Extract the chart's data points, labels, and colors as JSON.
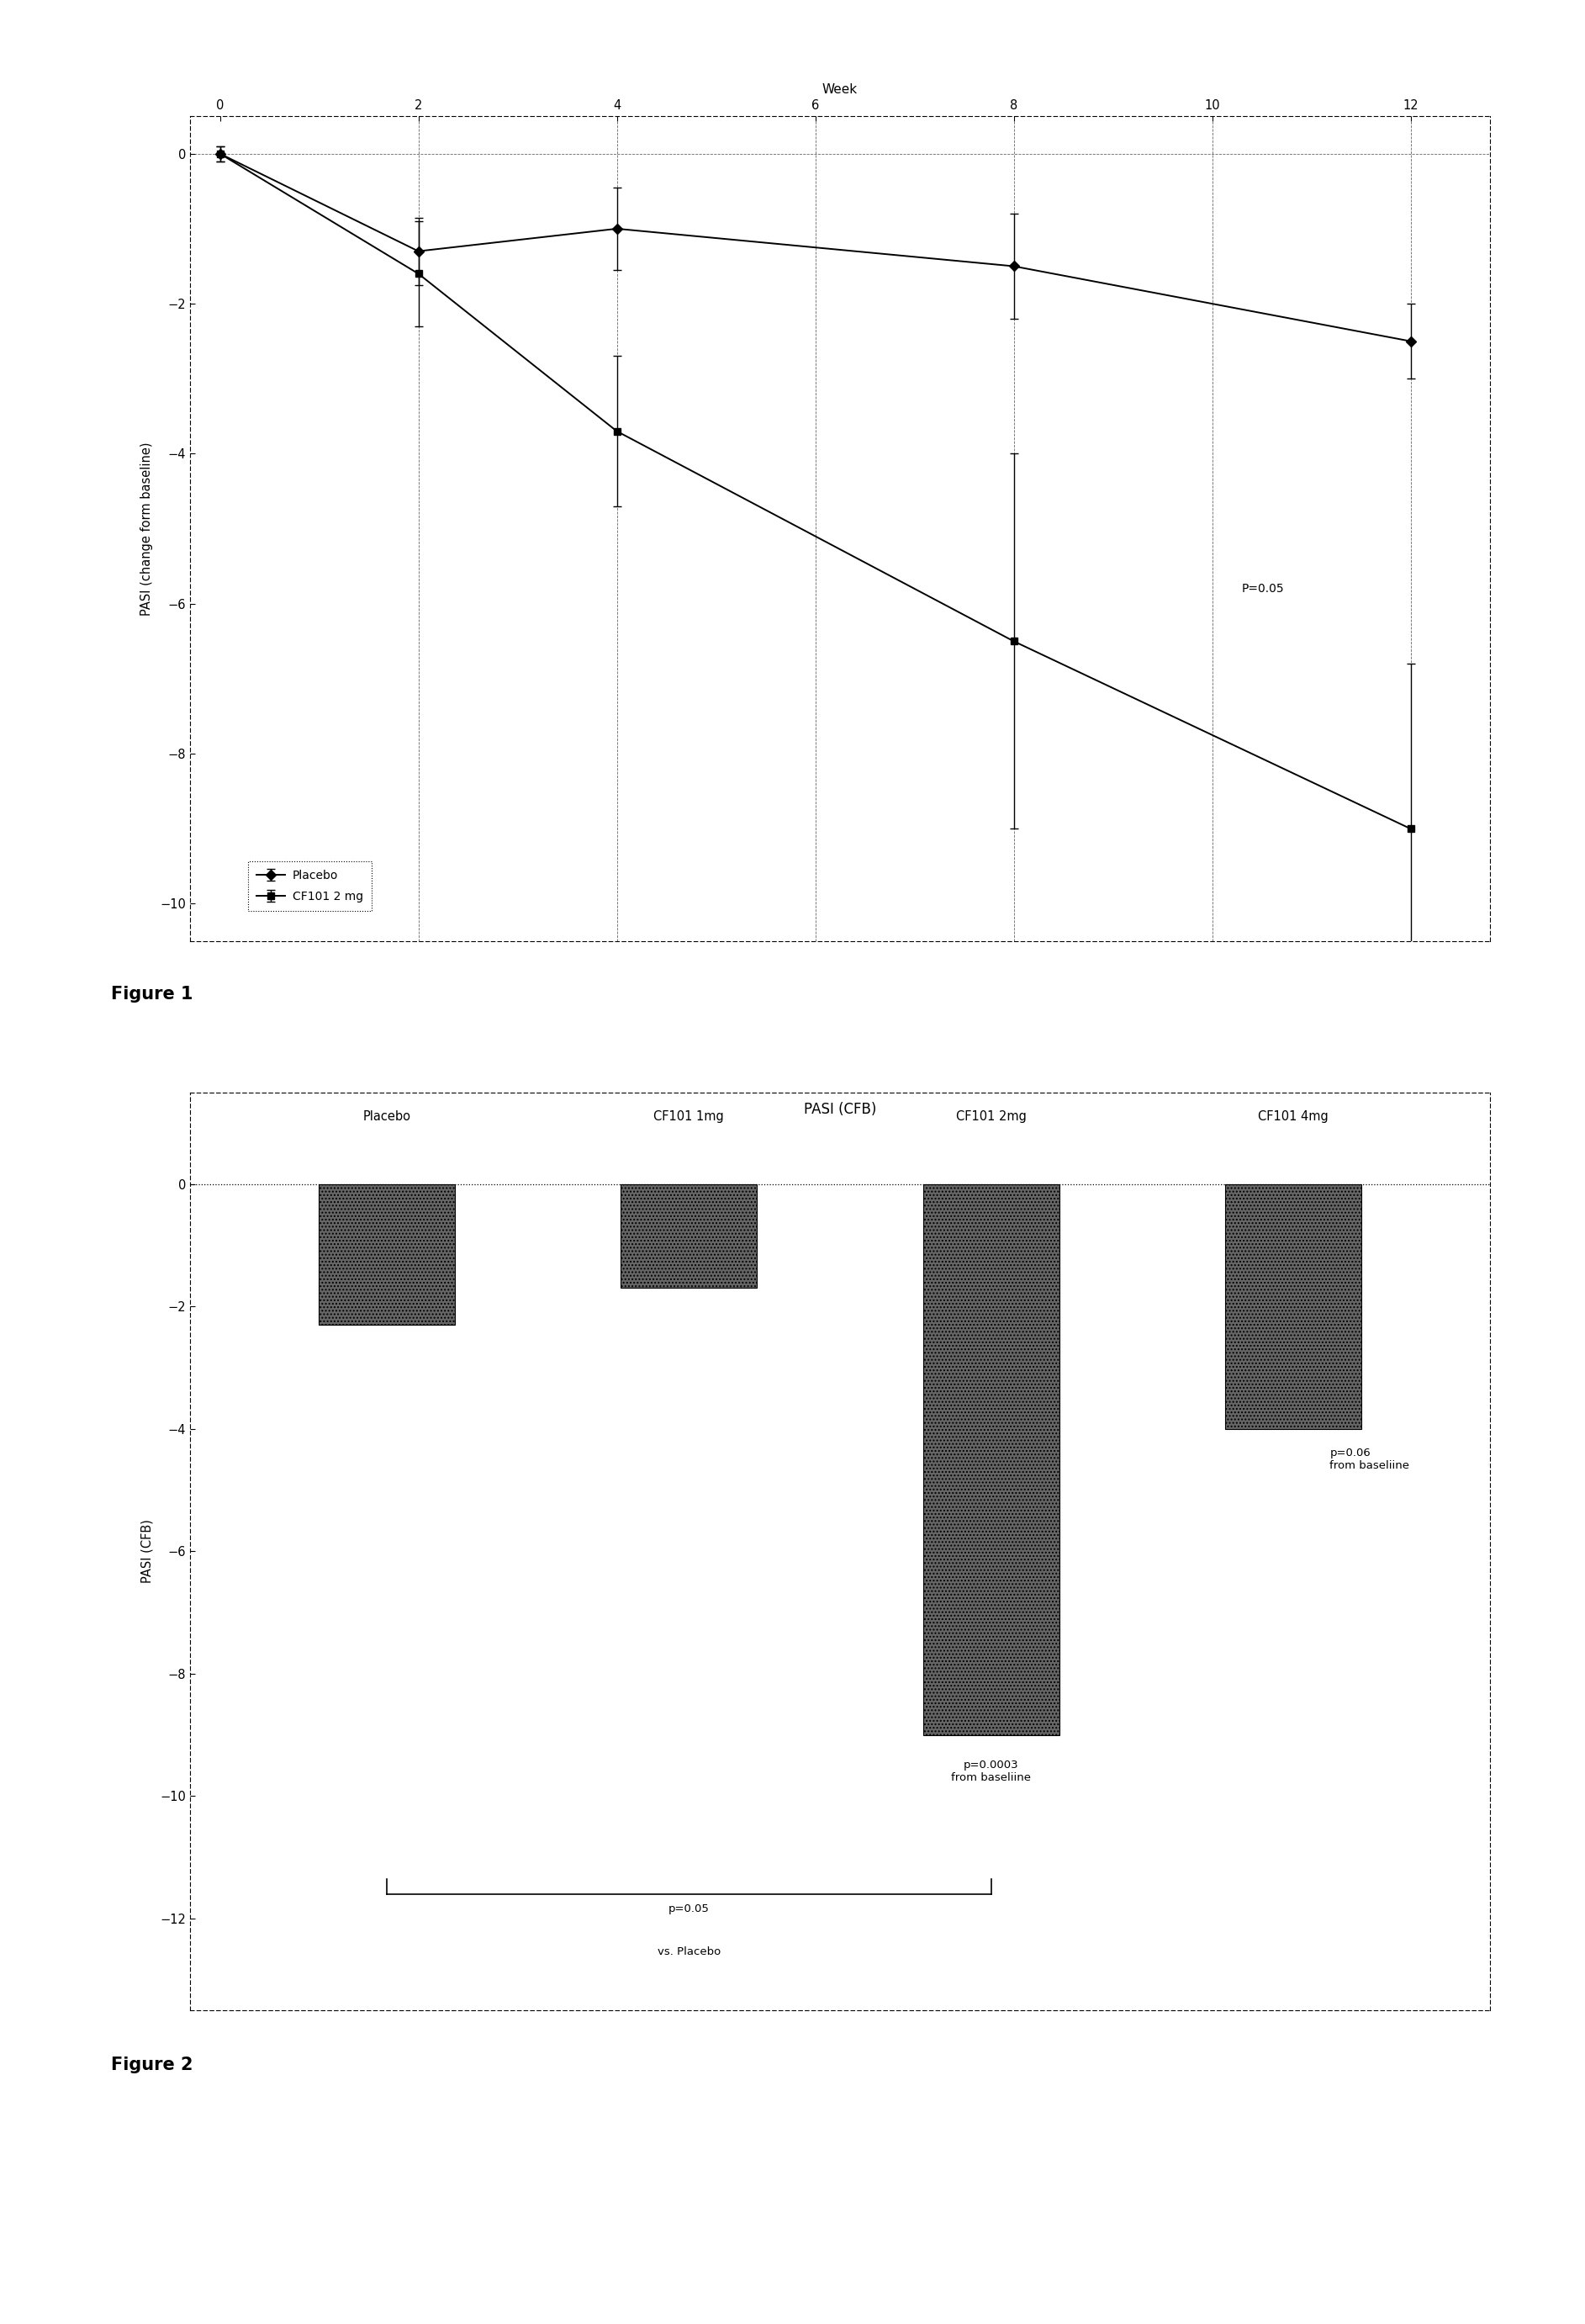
{
  "fig1": {
    "title": "Week",
    "ylabel": "PASI (change form baseline)",
    "placebo_x": [
      0,
      2,
      4,
      8,
      12
    ],
    "placebo_y": [
      0,
      -1.3,
      -1.0,
      -1.5,
      -2.5
    ],
    "placebo_yerr": [
      0.1,
      0.45,
      0.55,
      0.7,
      0.5
    ],
    "cf101_x": [
      0,
      2,
      4,
      8,
      12
    ],
    "cf101_y": [
      0,
      -1.6,
      -3.7,
      -6.5,
      -9.0
    ],
    "cf101_yerr": [
      0.1,
      0.7,
      1.0,
      2.5,
      2.2
    ],
    "ylim": [
      -10.5,
      0.5
    ],
    "xlim": [
      -0.3,
      12.8
    ],
    "xticks": [
      0,
      2,
      4,
      6,
      8,
      10,
      12
    ],
    "yticks": [
      0,
      -2,
      -4,
      -6,
      -8,
      -10
    ],
    "pvalue_text": "P=0.05",
    "pvalue_x": 10.3,
    "pvalue_y": -5.8,
    "legend_placebo": "Placebo",
    "legend_cf101": "CF101 2 mg"
  },
  "fig2": {
    "title": "PASI (CFB)",
    "ylabel": "PASI (CFB)",
    "categories": [
      "Placebo",
      "CF101 1mg",
      "CF101 2mg",
      "CF101 4mg"
    ],
    "values": [
      -2.3,
      -1.7,
      -9.0,
      -4.0
    ],
    "bar_color": "#666666",
    "ylim": [
      -13.5,
      1.5
    ],
    "yticks": [
      0,
      -2,
      -4,
      -6,
      -8,
      -10,
      -12
    ],
    "pval_cf2_text": "p=0.0003\nfrom baseliine",
    "pval_cf2_x": 2,
    "pval_cf2_y": -9.4,
    "pval_cf4_text": "p=0.06\nfrom baseliine",
    "pval_cf4_x": 3.12,
    "pval_cf4_y": -4.3,
    "pval_vs_text1": "p=0.05",
    "pval_vs_text2": "vs. Placebo",
    "bracket_y": -11.6,
    "bracket_x1": 0,
    "bracket_x2": 2
  },
  "background_color": "#ffffff",
  "figure_label1": "Figure 1",
  "figure_label2": "Figure 2"
}
